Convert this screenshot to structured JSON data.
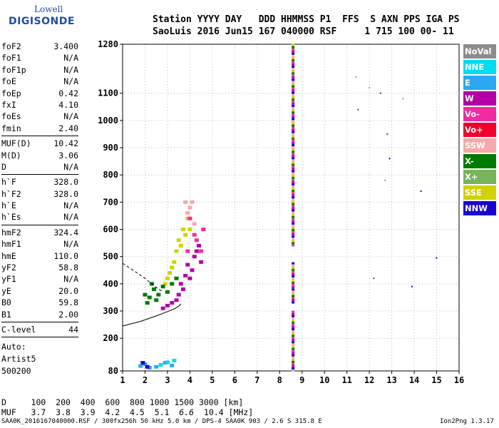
{
  "logo": {
    "line1": "Lowell",
    "line2": "DIGISONDE"
  },
  "header": {
    "row1": "Station YYYY DAY   DDD HHMMSS P1  FFS  S AXN PPS IGA PS",
    "row2": "SaoLuis 2016 Jun15 167 040000 RSF     1 715 100 00- 11"
  },
  "params_groups": [
    [
      {
        "name": "foF2",
        "value": "3.400"
      },
      {
        "name": "foF1",
        "value": "N/A"
      },
      {
        "name": "foF1p",
        "value": "N/A"
      },
      {
        "name": "foE",
        "value": "N/A"
      },
      {
        "name": "foEp",
        "value": "0.42"
      },
      {
        "name": "fxI",
        "value": "4.10"
      },
      {
        "name": "foEs",
        "value": "N/A"
      },
      {
        "name": "fmin",
        "value": "2.40"
      }
    ],
    [
      {
        "name": "MUF(D)",
        "value": "10.42"
      },
      {
        "name": "M(D)",
        "value": "3.06"
      },
      {
        "name": "D",
        "value": "N/A"
      }
    ],
    [
      {
        "name": "h`F",
        "value": "328.0"
      },
      {
        "name": "h`F2",
        "value": "328.0"
      },
      {
        "name": "h`E",
        "value": "N/A"
      },
      {
        "name": "h`Es",
        "value": "N/A"
      }
    ],
    [
      {
        "name": "hmF2",
        "value": "324.4"
      },
      {
        "name": "hmF1",
        "value": "N/A"
      },
      {
        "name": "hmE",
        "value": "110.0"
      },
      {
        "name": "yF2",
        "value": "58.8"
      },
      {
        "name": "yF1",
        "value": "N/A"
      },
      {
        "name": "yE",
        "value": "20.0"
      },
      {
        "name": "B0",
        "value": "59.8"
      },
      {
        "name": "B1",
        "value": "2.00"
      }
    ],
    [
      {
        "name": "C-level",
        "value": "44"
      }
    ]
  ],
  "auto": {
    "line1": "Auto:",
    "line2": "Artist5",
    "line3": "500200"
  },
  "legend": [
    {
      "label": "NoVal",
      "color": "#8c8c8c"
    },
    {
      "label": "NNE",
      "color": "#00dcf0"
    },
    {
      "label": "E",
      "color": "#2aa8f2"
    },
    {
      "label": "W",
      "color": "#b400a6"
    },
    {
      "label": "Vo-",
      "color": "#f22aa0"
    },
    {
      "label": "Vo+",
      "color": "#f0002a"
    },
    {
      "label": "SSW",
      "color": "#f4aaa8"
    },
    {
      "label": "X-",
      "color": "#007a00"
    },
    {
      "label": "X+",
      "color": "#78b45a"
    },
    {
      "label": "SSE",
      "color": "#d2d200"
    },
    {
      "label": "NNW",
      "color": "#1a00d2"
    }
  ],
  "bottom": {
    "row1": "D     100  200  400  600  800 1000 1500 3000 [km]",
    "muf_label": "MUF",
    "muf_values": [
      "3.7",
      "3.8",
      "3.9",
      "4.2",
      "4.5",
      "5.1",
      "6.6",
      "10.4"
    ],
    "muf_unit": "[MHz]"
  },
  "footer": {
    "left": "SAA0K_2016167040000.RSF / 300fx256h 50 kHz 5.0 km / DPS-4 SAA0K 903 / 2.6 S 315.8 E",
    "right": "Ion2Png 1.3.17"
  },
  "chart_data": {
    "type": "scatter",
    "x_ticks": [
      1,
      2,
      3,
      4,
      5,
      6,
      7,
      8,
      9,
      10,
      11,
      12,
      13,
      14,
      15,
      16
    ],
    "y_ticks": [
      80,
      200,
      300,
      400,
      500,
      600,
      700,
      800,
      900,
      1000,
      1100,
      1280
    ],
    "xlim": [
      1,
      16
    ],
    "ylim": [
      80,
      1280
    ],
    "grid": true,
    "point_groups": [
      {
        "name": "W",
        "color": "#b400a6",
        "points": [
          [
            3.6,
            400
          ],
          [
            3.8,
            430
          ],
          [
            3.9,
            470
          ],
          [
            4.1,
            450
          ],
          [
            4.2,
            500
          ],
          [
            4.3,
            520
          ],
          [
            4.5,
            480
          ],
          [
            3.5,
            360
          ],
          [
            3.4,
            340
          ],
          [
            3.2,
            330
          ],
          [
            4.0,
            420
          ],
          [
            4.4,
            540
          ],
          [
            3.7,
            380
          ],
          [
            3.0,
            320
          ],
          [
            2.8,
            310
          ]
        ]
      },
      {
        "name": "SSE",
        "color": "#d2d200",
        "points": [
          [
            3.0,
            420
          ],
          [
            3.2,
            460
          ],
          [
            3.4,
            520
          ],
          [
            3.5,
            560
          ],
          [
            3.7,
            600
          ],
          [
            3.9,
            640
          ],
          [
            4.0,
            600
          ],
          [
            3.3,
            480
          ],
          [
            3.6,
            540
          ],
          [
            3.1,
            440
          ],
          [
            2.9,
            400
          ],
          [
            3.8,
            580
          ]
        ]
      },
      {
        "name": "X-",
        "color": "#007a00",
        "points": [
          [
            2.0,
            360
          ],
          [
            2.2,
            350
          ],
          [
            2.4,
            380
          ],
          [
            2.6,
            360
          ],
          [
            2.8,
            390
          ],
          [
            3.0,
            370
          ],
          [
            3.2,
            400
          ],
          [
            3.4,
            420
          ],
          [
            2.5,
            340
          ],
          [
            2.1,
            330
          ],
          [
            2.3,
            400
          ],
          [
            12.5,
            1100
          ],
          [
            11.5,
            1040
          ],
          [
            12.2,
            420
          ],
          [
            12.8,
            950
          ]
        ]
      },
      {
        "name": "Vo-",
        "color": "#f22aa0",
        "points": [
          [
            4.3,
            560
          ],
          [
            4.5,
            520
          ],
          [
            4.2,
            580
          ],
          [
            4.0,
            640
          ],
          [
            3.9,
            520
          ],
          [
            4.6,
            600
          ]
        ]
      },
      {
        "name": "SSW",
        "color": "#f4aaa8",
        "points": [
          [
            4.1,
            700
          ],
          [
            4.0,
            680
          ],
          [
            3.9,
            660
          ],
          [
            4.2,
            620
          ],
          [
            3.8,
            700
          ]
        ]
      },
      {
        "name": "E",
        "color": "#2aa8f2",
        "points": [
          [
            2.0,
            105
          ],
          [
            1.8,
            98
          ],
          [
            2.2,
            92
          ],
          [
            2.9,
            110
          ],
          [
            3.2,
            100
          ],
          [
            2.5,
            95
          ]
        ]
      },
      {
        "name": "NNE",
        "color": "#00dcf0",
        "points": [
          [
            3.0,
            112
          ],
          [
            3.3,
            118
          ],
          [
            2.7,
            102
          ]
        ]
      },
      {
        "name": "NNW",
        "color": "#1a00d2",
        "points": [
          [
            12.9,
            860
          ],
          [
            14.3,
            740
          ],
          [
            13.9,
            390
          ],
          [
            15.0,
            495
          ],
          [
            1.9,
            110
          ],
          [
            2.1,
            95
          ]
        ]
      },
      {
        "name": "X+",
        "color": "#78b45a",
        "points": [
          [
            11.4,
            1160
          ],
          [
            12.0,
            1120
          ],
          [
            13.5,
            1080
          ],
          [
            12.7,
            780
          ]
        ]
      }
    ],
    "trace_8_6": {
      "x": 8.6,
      "y_ranges": [
        [
          80,
          300
        ],
        [
          330,
          480
        ],
        [
          540,
          1280
        ]
      ]
    },
    "curves": [
      {
        "name": "profile",
        "points": [
          [
            1,
            245
          ],
          [
            1.8,
            262
          ],
          [
            2.5,
            282
          ],
          [
            3.0,
            298
          ],
          [
            3.3,
            308
          ],
          [
            3.5,
            318
          ],
          [
            3.6,
            326
          ]
        ]
      },
      {
        "name": "profile-extension",
        "dashed": true,
        "points": [
          [
            1,
            475
          ],
          [
            1.5,
            448
          ],
          [
            2.0,
            420
          ],
          [
            2.4,
            392
          ],
          [
            2.8,
            370
          ]
        ]
      }
    ]
  }
}
